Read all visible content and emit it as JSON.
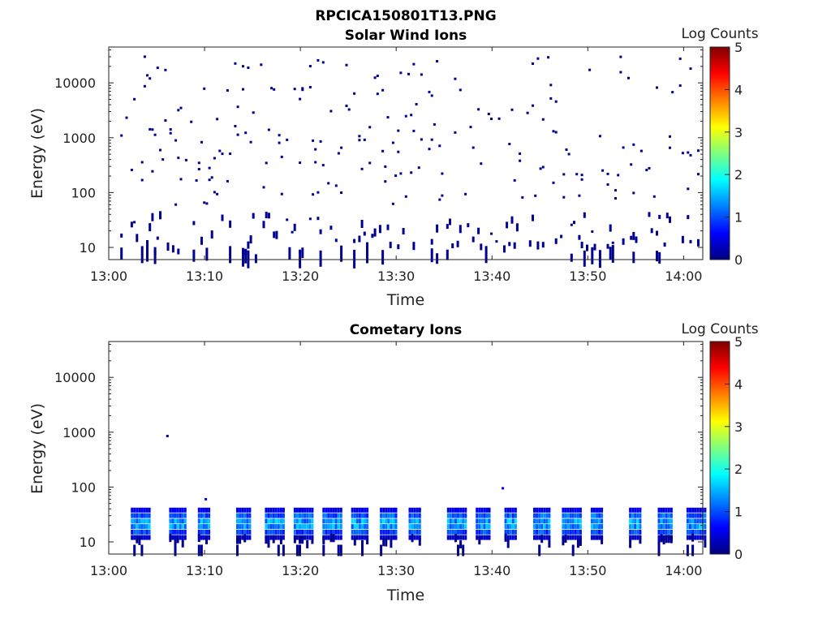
{
  "figure_title": "RPCICA150801T13.PNG",
  "colormap_stops": [
    "#00007f",
    "#0000ff",
    "#00ffff",
    "#ffff00",
    "#ff0000",
    "#7f0000"
  ],
  "chart_data": [
    {
      "type": "heatmap",
      "title": "Solar Wind Ions",
      "xlabel": "Time",
      "ylabel": "Energy (eV)",
      "yscale": "log",
      "ylim": [
        6,
        45000
      ],
      "x_ticks": [
        "13:00",
        "13:10",
        "13:20",
        "13:30",
        "13:40",
        "13:50",
        "14:00"
      ],
      "y_ticks": [
        "10",
        "100",
        "1000",
        "10000"
      ],
      "colorbar": {
        "label": "Log Counts",
        "range": [
          0,
          5
        ],
        "ticks": [
          "0",
          "1",
          "2",
          "3",
          "4",
          "5"
        ]
      },
      "dense_band_eV": [
        8,
        40
      ],
      "scattered_range_eV": [
        60,
        30000
      ],
      "dominant_log_counts": 0.1
    },
    {
      "type": "heatmap",
      "title": "Cometary Ions",
      "xlabel": "Time",
      "ylabel": "Energy (eV)",
      "yscale": "log",
      "ylim": [
        6,
        45000
      ],
      "x_ticks": [
        "13:00",
        "13:10",
        "13:20",
        "13:30",
        "13:40",
        "13:50",
        "14:00"
      ],
      "y_ticks": [
        "10",
        "100",
        "1000",
        "10000"
      ],
      "colorbar": {
        "label": "Log Counts",
        "range": [
          0,
          5
        ],
        "ticks": [
          "0",
          "1",
          "2",
          "3",
          "4",
          "5"
        ]
      },
      "burst_times": [
        "13:02",
        "13:06",
        "13:09",
        "13:13",
        "13:16",
        "13:19",
        "13:22",
        "13:25",
        "13:28",
        "13:31",
        "13:35",
        "13:38",
        "13:41",
        "13:44",
        "13:47",
        "13:50",
        "13:54",
        "13:57",
        "14:00"
      ],
      "burst_band_eV": [
        12,
        40
      ],
      "peak_log_counts": 1.8,
      "isolated_points": [
        {
          "time": "13:06",
          "energy_eV": 850,
          "log_counts": 0.1
        },
        {
          "time": "13:10",
          "energy_eV": 60,
          "log_counts": 0.5
        },
        {
          "time": "13:41",
          "energy_eV": 95,
          "log_counts": 0.5
        }
      ]
    }
  ]
}
